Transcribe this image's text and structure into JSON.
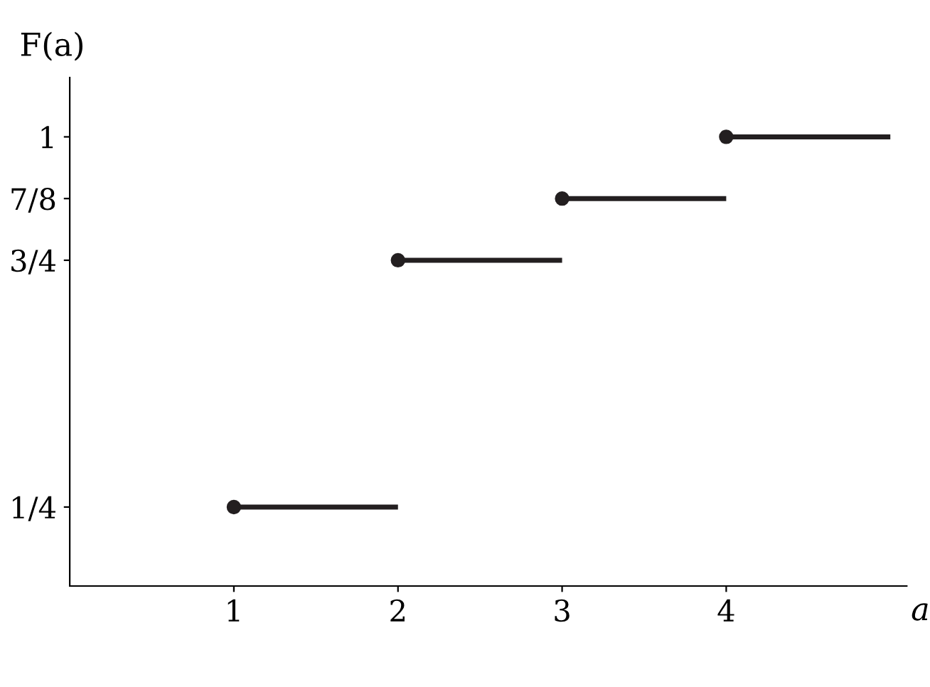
{
  "chart_data": {
    "type": "line",
    "xlabel": "a",
    "ylabel": "F(a)",
    "series": [
      {
        "color": "#231f20",
        "x": [
          1,
          2
        ],
        "values": [
          0.25,
          0.25
        ]
      },
      {
        "color": "#231f20",
        "x": [
          2,
          3
        ],
        "values": [
          0.75,
          0.75
        ]
      },
      {
        "color": "#231f20",
        "x": [
          3,
          4
        ],
        "values": [
          0.875,
          0.875
        ]
      },
      {
        "color": "#231f20",
        "x": [
          4,
          5
        ],
        "values": [
          1,
          1
        ]
      },
      {
        "type": "scatter",
        "marker": "circle",
        "color": "#231f20",
        "x": [
          1,
          2,
          3,
          4
        ],
        "values": [
          0.25,
          0.75,
          0.875,
          1
        ]
      }
    ],
    "grid": false,
    "xlim": [
      0,
      5.1
    ],
    "ylim": [
      0.09,
      1.12
    ],
    "xticks": [
      1,
      2,
      3,
      4
    ],
    "yticks": [
      {
        "value": 0.25,
        "label": "1/4"
      },
      {
        "value": 0.75,
        "label": "3/4"
      },
      {
        "value": 0.875,
        "label": "7/8"
      },
      1
    ]
  }
}
